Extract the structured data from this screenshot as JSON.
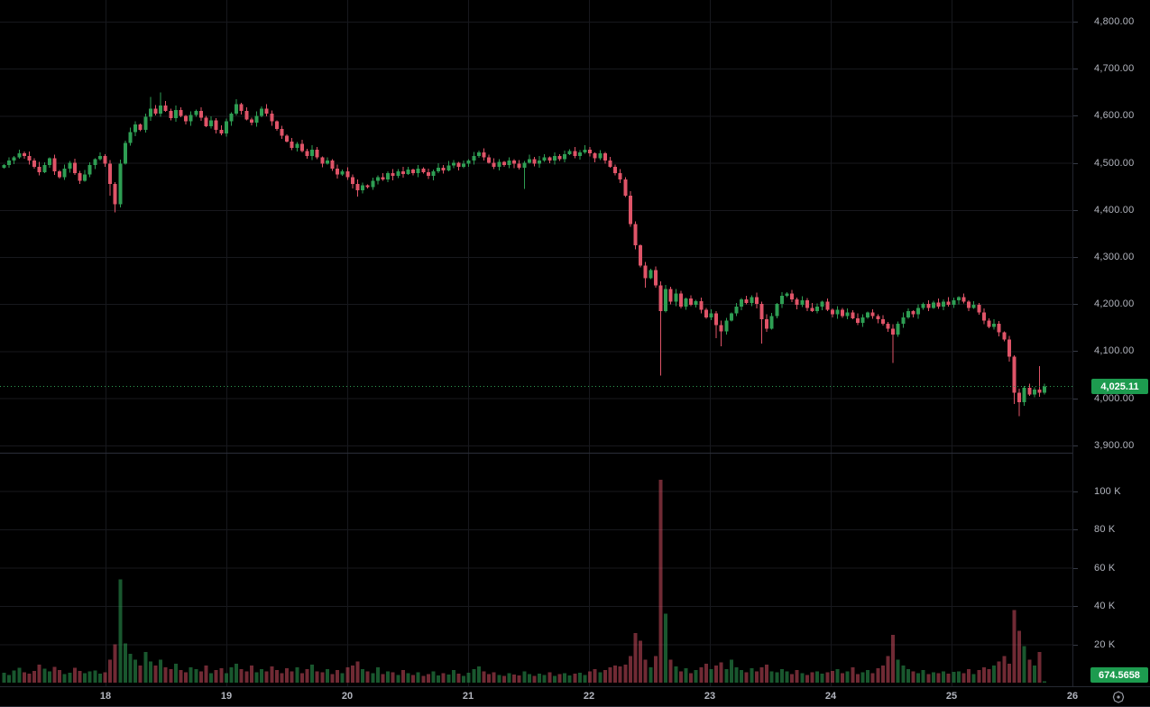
{
  "colors": {
    "background": "#000000",
    "grid": "#17181d",
    "separator": "#2a2e39",
    "up": "#2e9e53",
    "down": "#df5468",
    "volume_up": "rgba(46,158,83,0.55)",
    "volume_down": "rgba(223,84,104,0.5)",
    "badge_green": "#1d9b4f",
    "axis_text": "#b2b5be",
    "last_price_line": "#2e9e53",
    "icon": "#9598a1"
  },
  "right_axis": {
    "price_ticks": [
      {
        "label": "4,800.00",
        "value": 4800
      },
      {
        "label": "4,700.00",
        "value": 4700
      },
      {
        "label": "4,600.00",
        "value": 4600
      },
      {
        "label": "4,500.00",
        "value": 4500
      },
      {
        "label": "4,400.00",
        "value": 4400
      },
      {
        "label": "4,300.00",
        "value": 4300
      },
      {
        "label": "4,200.00",
        "value": 4200
      },
      {
        "label": "4,100.00",
        "value": 4100
      },
      {
        "label": "4,000.00",
        "value": 4000
      },
      {
        "label": "3,900.00",
        "value": 3900
      }
    ],
    "volume_ticks": [
      {
        "label": "100 K",
        "value": 100
      },
      {
        "label": "80 K",
        "value": 80
      },
      {
        "label": "60 K",
        "value": 60
      },
      {
        "label": "40 K",
        "value": 40
      },
      {
        "label": "20 K",
        "value": 20
      }
    ],
    "last_price_label": "4,025.11",
    "last_volume_label": "674.5658"
  },
  "time_axis": {
    "day_labels": [
      {
        "label": "18",
        "day": 18
      },
      {
        "label": "19",
        "day": 19
      },
      {
        "label": "20",
        "day": 20
      },
      {
        "label": "21",
        "day": 21
      },
      {
        "label": "22",
        "day": 22
      },
      {
        "label": "23",
        "day": 23
      },
      {
        "label": "24",
        "day": 24
      },
      {
        "label": "25",
        "day": 25
      },
      {
        "label": "26",
        "day": 26
      }
    ]
  },
  "chart_data": {
    "type": "candlestick_with_volume",
    "interval_hours": 1,
    "visible_day_range": [
      17.15,
      26.0
    ],
    "price_axis_range_labeled": [
      3900,
      4800
    ],
    "volume_axis_range_labeled_k": [
      0,
      100
    ],
    "last_price": 4025.11,
    "last_volume": 674.5658,
    "first_open": 4490,
    "closes": [
      4495,
      4505,
      4512,
      4520,
      4515,
      4505,
      4492,
      4480,
      4495,
      4510,
      4482,
      4470,
      4488,
      4500,
      4478,
      4462,
      4475,
      4495,
      4508,
      4515,
      4498,
      4455,
      4412,
      4498,
      4542,
      4565,
      4582,
      4570,
      4598,
      4615,
      4605,
      4622,
      4610,
      4595,
      4612,
      4600,
      4588,
      4602,
      4610,
      4596,
      4578,
      4590,
      4570,
      4562,
      4588,
      4605,
      4625,
      4610,
      4592,
      4585,
      4600,
      4615,
      4605,
      4588,
      4572,
      4558,
      4545,
      4532,
      4540,
      4525,
      4515,
      4528,
      4512,
      4498,
      4505,
      4488,
      4475,
      4482,
      4470,
      4455,
      4442,
      4452,
      4448,
      4462,
      4470,
      4465,
      4478,
      4472,
      4482,
      4476,
      4486,
      4478,
      4488,
      4480,
      4472,
      4482,
      4490,
      4484,
      4494,
      4500,
      4492,
      4498,
      4505,
      4515,
      4522,
      4512,
      4500,
      4492,
      4502,
      4495,
      4505,
      4498,
      4490,
      4500,
      4508,
      4498,
      4505,
      4512,
      4505,
      4515,
      4508,
      4518,
      4525,
      4515,
      4522,
      4528,
      4520,
      4510,
      4520,
      4505,
      4492,
      4478,
      4465,
      4430,
      4370,
      4325,
      4282,
      4255,
      4272,
      4240,
      4185,
      4232,
      4205,
      4222,
      4195,
      4212,
      4198,
      4206,
      4188,
      4172,
      4180,
      4155,
      4142,
      4165,
      4180,
      4195,
      4210,
      4202,
      4215,
      4200,
      4168,
      4148,
      4175,
      4200,
      4218,
      4222,
      4210,
      4198,
      4208,
      4192,
      4185,
      4195,
      4205,
      4188,
      4178,
      4188,
      4175,
      4182,
      4170,
      4160,
      4172,
      4182,
      4175,
      4168,
      4158,
      4148,
      4135,
      4158,
      4172,
      4185,
      4178,
      4192,
      4200,
      4192,
      4203,
      4195,
      4205,
      4198,
      4208,
      4215,
      4205,
      4192,
      4198,
      4182,
      4165,
      4152,
      4158,
      4140,
      4125,
      4088,
      4012,
      3992,
      4022,
      4008,
      4018,
      4012,
      4025.11
    ],
    "volumes_k": [
      5.2,
      4.1,
      6.3,
      7.8,
      5.5,
      4.8,
      6.1,
      9.4,
      7.2,
      5.9,
      8.3,
      6.6,
      4.4,
      5.1,
      7.7,
      6.2,
      4.9,
      5.8,
      6.4,
      4.6,
      5.3,
      12,
      20,
      54,
      20.5,
      15,
      12,
      9,
      16,
      11,
      9,
      12,
      8,
      7,
      10,
      6.5,
      5.5,
      8,
      7,
      6,
      9,
      5,
      6.5,
      7.5,
      5,
      8,
      10,
      7,
      6,
      9,
      5.5,
      7,
      6,
      8.5,
      6.5,
      5,
      7.5,
      6,
      8,
      5,
      7,
      9.5,
      6,
      5.5,
      7,
      4.5,
      6.5,
      5,
      8,
      9,
      11,
      7,
      6,
      5,
      8,
      4.5,
      6,
      5.5,
      4,
      6.5,
      5,
      4,
      5.5,
      3.5,
      4.5,
      6,
      3.8,
      5,
      4.2,
      6.5,
      4.8,
      3.6,
      5.2,
      7,
      8.5,
      6,
      4.5,
      5.5,
      4,
      3.5,
      5,
      4.2,
      3.8,
      6,
      4.5,
      3.5,
      4.8,
      4,
      5.5,
      3.6,
      4.4,
      5,
      3.8,
      4.6,
      5.2,
      4,
      6,
      7,
      5.5,
      6.5,
      8,
      9,
      8.5,
      9.5,
      14,
      26,
      22,
      12,
      8,
      14,
      106,
      36,
      12,
      8.5,
      6,
      7.5,
      5,
      6.5,
      8,
      10,
      7,
      9,
      10.5,
      7,
      12,
      8,
      6.5,
      5.5,
      7.5,
      6,
      8,
      9.5,
      6,
      5.5,
      7,
      6,
      4.5,
      6.5,
      5,
      4,
      5.5,
      6,
      4.8,
      5.4,
      6.2,
      7,
      5,
      6,
      8,
      4.5,
      5.5,
      6.5,
      5,
      7.5,
      9,
      14,
      25,
      12,
      9,
      7,
      6,
      5,
      6.5,
      4.5,
      5.5,
      5,
      6,
      4.8,
      5.6,
      6,
      5,
      7,
      4.5,
      6.5,
      8,
      7,
      9,
      11,
      14,
      10,
      38,
      27,
      19,
      12,
      9,
      16,
      0.675
    ],
    "wick_overrides": {
      "21": [
        null,
        4430
      ],
      "22": [
        null,
        4395
      ],
      "29": [
        4640,
        null
      ],
      "31": [
        4650,
        null
      ],
      "46": [
        4635,
        null
      ],
      "70": [
        null,
        4428
      ],
      "103": [
        null,
        4445
      ],
      "127": [
        null,
        4235
      ],
      "130": [
        4248,
        4048
      ],
      "141": [
        null,
        4128
      ],
      "142": [
        null,
        4110
      ],
      "150": [
        null,
        4116
      ],
      "176": [
        null,
        4075
      ],
      "199": [
        null,
        4078
      ],
      "200": [
        null,
        3988
      ],
      "201": [
        null,
        3962
      ],
      "205": [
        4068,
        null
      ]
    },
    "grid": true,
    "legend": "none"
  },
  "settings_icon_name": "pane-settings-gear-icon"
}
